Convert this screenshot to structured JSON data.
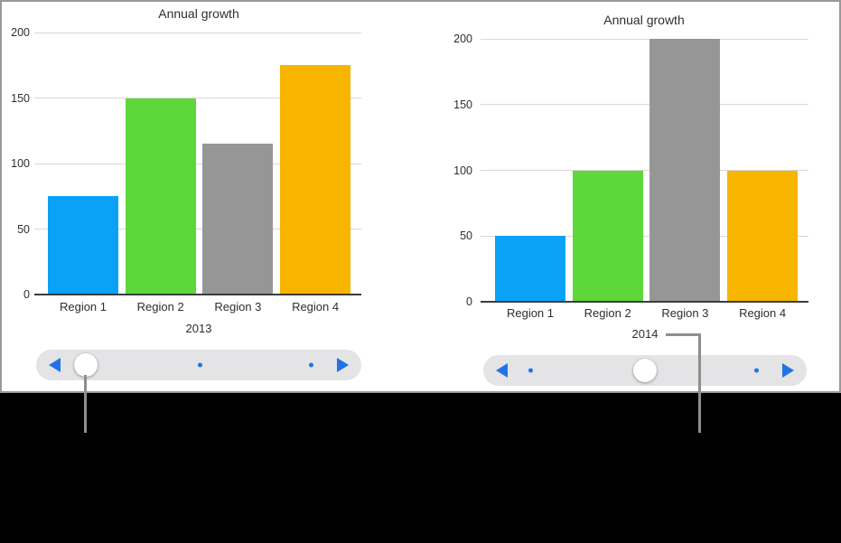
{
  "chart_data": [
    {
      "type": "bar",
      "title": "Annual growth",
      "xlabel": "2013",
      "ylabel": "",
      "categories": [
        "Region 1",
        "Region 2",
        "Region 3",
        "Region 4"
      ],
      "values": [
        75,
        150,
        115,
        175
      ],
      "bar_colors": [
        "#0aa2f7",
        "#5ed73a",
        "#969696",
        "#f7b500"
      ],
      "ylim": [
        0,
        200
      ],
      "y_ticks": [
        0,
        50,
        100,
        150,
        200
      ],
      "grid": true,
      "legend": false
    },
    {
      "type": "bar",
      "title": "Annual growth",
      "xlabel": "2014",
      "ylabel": "",
      "categories": [
        "Region 1",
        "Region 2",
        "Region 3",
        "Region 4"
      ],
      "values": [
        50,
        100,
        200,
        100
      ],
      "bar_colors": [
        "#0aa2f7",
        "#5ed73a",
        "#969696",
        "#f7b500"
      ],
      "ylim": [
        0,
        200
      ],
      "y_ticks": [
        0,
        50,
        100,
        150,
        200
      ],
      "grid": true,
      "legend": false
    }
  ],
  "sliders": [
    {
      "name": "year-slider-2013",
      "positions": [
        0.153,
        0.503,
        0.845
      ],
      "selected_index": 0
    },
    {
      "name": "year-slider-2014",
      "positions": [
        0.148,
        0.5,
        0.846
      ],
      "selected_index": 1
    }
  ],
  "style": {
    "accent_blue": "#2074e6",
    "track_gray": "#e4e4e6",
    "knob_white": "#ffffff",
    "callout_gray": "#8e8e8e",
    "grid_gray": "#d8d8d8",
    "axis_dark": "#3c3c3c",
    "text_dark": "#2e2e2e",
    "canvas_white": "#ffffff",
    "caption_bg": "#000000",
    "border_gray": "#999999"
  }
}
